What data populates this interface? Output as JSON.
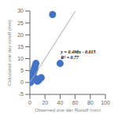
{
  "chart_data": {
    "type": "scatter",
    "xlabel": "Observed one day Runoff (mm)",
    "ylabel": "Calculated one day runoff (mm)",
    "xlim": [
      0,
      100
    ],
    "ylim": [
      -5,
      30
    ],
    "xticks": [
      0,
      20,
      40,
      60,
      80,
      100
    ],
    "yticks": [
      -5,
      0,
      5,
      10,
      15,
      20,
      25,
      30
    ],
    "grid": false,
    "series": [
      {
        "type": "scatter",
        "color": "#4472c4",
        "x": [
          0.5,
          0.8,
          1.0,
          1.2,
          1.5,
          1.8,
          2.0,
          2.2,
          2.5,
          2.8,
          3.0,
          3.5,
          4.0,
          4.5,
          5.0,
          5.5,
          6.0,
          7.0,
          8.0,
          10.0,
          12.0,
          15.0,
          30.0,
          40.0,
          0.3,
          0.6,
          1.1,
          1.3,
          2.1,
          3.2,
          4.2,
          6.5,
          9.0
        ],
        "values": [
          0.1,
          0.2,
          0.3,
          0.5,
          0.8,
          1.0,
          1.2,
          1.5,
          1.8,
          2.0,
          2.5,
          3.0,
          3.5,
          4.0,
          4.5,
          5.0,
          6.0,
          7.0,
          8.0,
          0.5,
          1.0,
          2.0,
          28.5,
          8.0,
          0.0,
          0.1,
          0.4,
          0.6,
          1.3,
          2.2,
          3.8,
          5.5,
          1.5
        ]
      },
      {
        "type": "line",
        "color": "#aaaaaa",
        "x": [
          0,
          60
        ],
        "values": [
          -0.015,
          29.865
        ]
      }
    ],
    "annotations": [
      "y = 0.498x - 0.015",
      "R² = 0.77"
    ]
  }
}
